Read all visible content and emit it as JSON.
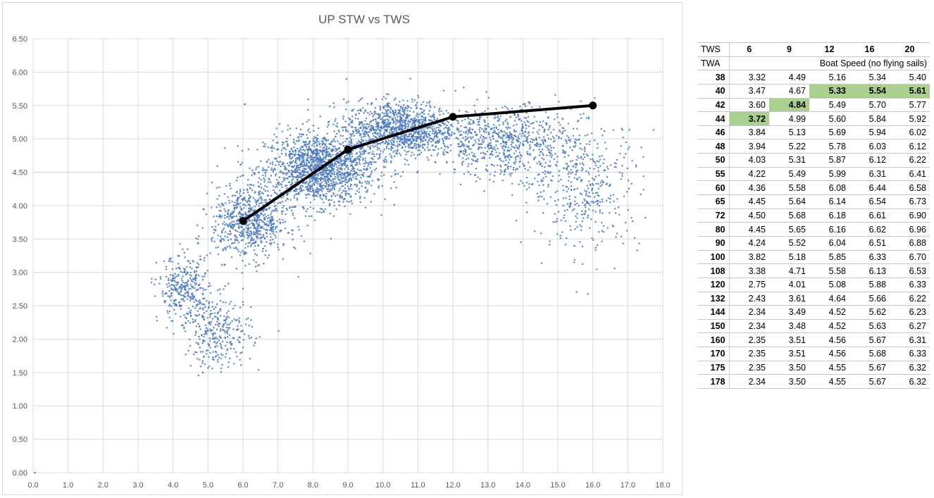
{
  "chart_data": {
    "type": "scatter",
    "title": "UP STW vs TWS",
    "xlabel": "",
    "ylabel": "",
    "xlim": [
      0,
      18
    ],
    "ylim": [
      0,
      6.5
    ],
    "x_ticks": [
      "0.0",
      "1.0",
      "2.0",
      "3.0",
      "4.0",
      "5.0",
      "6.0",
      "7.0",
      "8.0",
      "9.0",
      "10.0",
      "11.0",
      "12.0",
      "13.0",
      "14.0",
      "15.0",
      "16.0",
      "17.0",
      "18.0"
    ],
    "y_ticks": [
      "0.00",
      "0.50",
      "1.00",
      "1.50",
      "2.00",
      "2.50",
      "3.00",
      "3.50",
      "4.00",
      "4.50",
      "5.00",
      "5.50",
      "6.00",
      "6.50"
    ],
    "grid": true,
    "legend": "none",
    "series": [
      {
        "type": "scatter",
        "color": "#4a79bd",
        "description_points": "dense cloud of several thousand measured samples",
        "clusters": [
          {
            "x_center": 8.2,
            "y_center": 4.55,
            "x_spread": 1.3,
            "y_spread": 0.45,
            "weight": 0.3
          },
          {
            "x_center": 10.5,
            "y_center": 5.15,
            "x_spread": 1.3,
            "y_spread": 0.35,
            "weight": 0.22
          },
          {
            "x_center": 6.2,
            "y_center": 3.75,
            "x_spread": 0.9,
            "y_spread": 0.45,
            "weight": 0.14
          },
          {
            "x_center": 13.5,
            "y_center": 4.95,
            "x_spread": 1.6,
            "y_spread": 0.45,
            "weight": 0.14
          },
          {
            "x_center": 15.8,
            "y_center": 4.3,
            "x_spread": 1.3,
            "y_spread": 0.8,
            "weight": 0.08
          },
          {
            "x_center": 4.3,
            "y_center": 2.75,
            "x_spread": 0.6,
            "y_spread": 0.4,
            "weight": 0.06
          },
          {
            "x_center": 5.3,
            "y_center": 2.1,
            "x_spread": 0.8,
            "y_spread": 0.45,
            "weight": 0.06
          }
        ],
        "outliers": [
          [
            0.05,
            0.0
          ],
          [
            6.05,
            5.52
          ],
          [
            4.85,
            1.5
          ]
        ]
      },
      {
        "type": "line",
        "color": "#000000",
        "x": [
          6,
          9,
          12,
          16
        ],
        "values": [
          3.77,
          4.84,
          5.33,
          5.5
        ]
      }
    ]
  },
  "table": {
    "tws_label": "TWS",
    "twa_label": "TWA",
    "boat_speed_label": "Boat Speed",
    "no_flying_label": "(no flying sails)",
    "tws": [
      "6",
      "9",
      "12",
      "16",
      "20"
    ],
    "highlight_color": "#a9d08e",
    "rows": [
      {
        "twa": "38",
        "values": [
          "3.32",
          "4.49",
          "5.16",
          "5.34",
          "5.40"
        ],
        "highlight": []
      },
      {
        "twa": "40",
        "values": [
          "3.47",
          "4.67",
          "5.33",
          "5.54",
          "5.61"
        ],
        "highlight": [
          2,
          3,
          4
        ]
      },
      {
        "twa": "42",
        "values": [
          "3.60",
          "4.84",
          "5.49",
          "5.70",
          "5.77"
        ],
        "highlight": [
          1
        ]
      },
      {
        "twa": "44",
        "values": [
          "3.72",
          "4.99",
          "5.60",
          "5.84",
          "5.92"
        ],
        "highlight": [
          0
        ]
      },
      {
        "twa": "46",
        "values": [
          "3.84",
          "5.13",
          "5.69",
          "5.94",
          "6.02"
        ],
        "highlight": []
      },
      {
        "twa": "48",
        "values": [
          "3.94",
          "5.22",
          "5.78",
          "6.03",
          "6.12"
        ],
        "highlight": []
      },
      {
        "twa": "50",
        "values": [
          "4.03",
          "5.31",
          "5.87",
          "6.12",
          "6.22"
        ],
        "highlight": []
      },
      {
        "twa": "55",
        "values": [
          "4.22",
          "5.49",
          "5.99",
          "6.31",
          "6.41"
        ],
        "highlight": []
      },
      {
        "twa": "60",
        "values": [
          "4.36",
          "5.58",
          "6.08",
          "6.44",
          "6.58"
        ],
        "highlight": []
      },
      {
        "twa": "65",
        "values": [
          "4.45",
          "5.64",
          "6.14",
          "6.54",
          "6.73"
        ],
        "highlight": []
      },
      {
        "twa": "72",
        "values": [
          "4.50",
          "5.68",
          "6.18",
          "6.61",
          "6.90"
        ],
        "highlight": []
      },
      {
        "twa": "80",
        "values": [
          "4.45",
          "5.65",
          "6.16",
          "6.62",
          "6.96"
        ],
        "highlight": []
      },
      {
        "twa": "90",
        "values": [
          "4.24",
          "5.52",
          "6.04",
          "6.51",
          "6.88"
        ],
        "highlight": []
      },
      {
        "twa": "100",
        "values": [
          "3.82",
          "5.18",
          "5.85",
          "6.33",
          "6.70"
        ],
        "highlight": []
      },
      {
        "twa": "108",
        "values": [
          "3.38",
          "4.71",
          "5.58",
          "6.13",
          "6.53"
        ],
        "highlight": []
      },
      {
        "twa": "120",
        "values": [
          "2.75",
          "4.01",
          "5.08",
          "5.88",
          "6.33"
        ],
        "highlight": []
      },
      {
        "twa": "132",
        "values": [
          "2.43",
          "3.61",
          "4.64",
          "5.66",
          "6.22"
        ],
        "highlight": []
      },
      {
        "twa": "144",
        "values": [
          "2.34",
          "3.49",
          "4.52",
          "5.62",
          "6.23"
        ],
        "highlight": []
      },
      {
        "twa": "150",
        "values": [
          "2.34",
          "3.48",
          "4.52",
          "5.63",
          "6.27"
        ],
        "highlight": []
      },
      {
        "twa": "160",
        "values": [
          "2.35",
          "3.51",
          "4.56",
          "5.67",
          "6.31"
        ],
        "highlight": []
      },
      {
        "twa": "170",
        "values": [
          "2.35",
          "3.51",
          "4.56",
          "5.68",
          "6.33"
        ],
        "highlight": []
      },
      {
        "twa": "175",
        "values": [
          "2.35",
          "3.50",
          "4.55",
          "5.67",
          "6.32"
        ],
        "highlight": []
      },
      {
        "twa": "178",
        "values": [
          "2.34",
          "3.50",
          "4.55",
          "5.67",
          "6.32"
        ],
        "highlight": []
      }
    ]
  }
}
